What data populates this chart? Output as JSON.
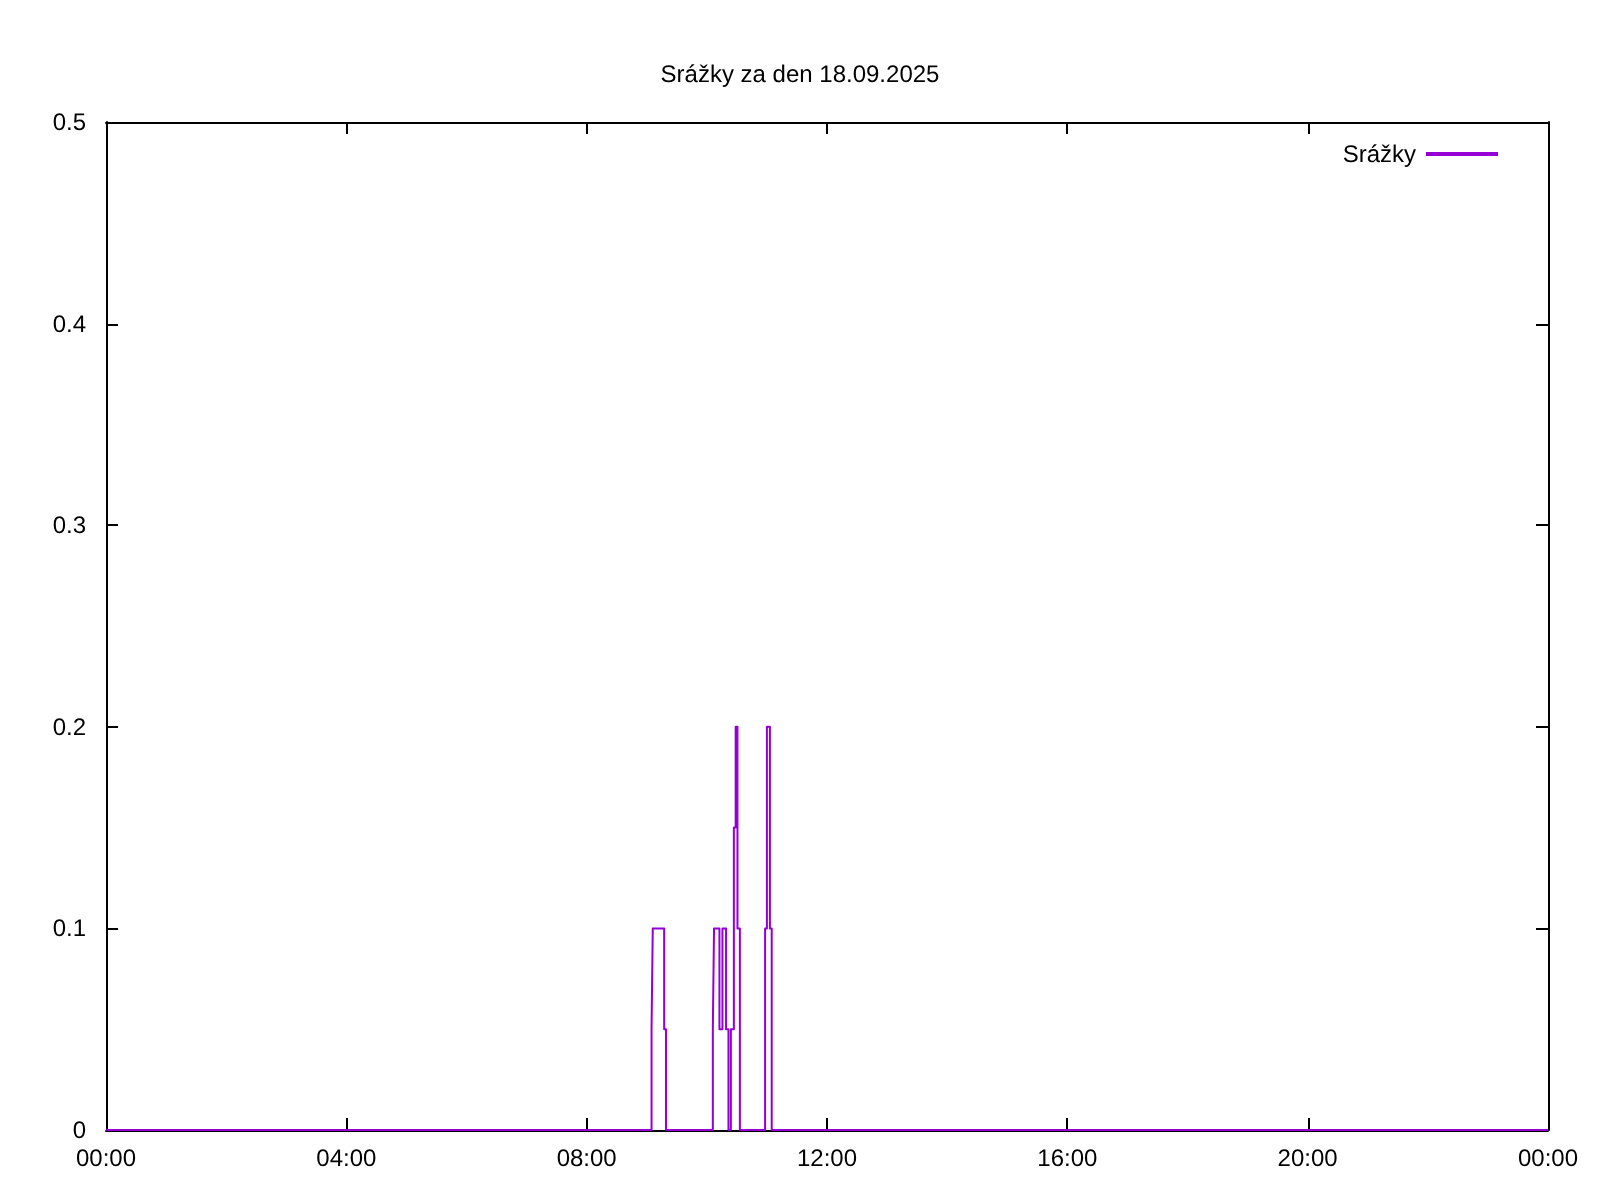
{
  "chart_data": {
    "type": "step",
    "title": "Srážky za den 18.09.2025",
    "x": [
      0,
      9.08,
      9.1,
      9.14,
      9.2,
      9.24,
      9.29,
      9.32,
      9.35,
      10.1,
      10.12,
      10.15,
      10.21,
      10.26,
      10.32,
      10.36,
      10.4,
      10.45,
      10.48,
      10.51,
      10.55,
      10.58,
      10.97,
      11.0,
      11.05,
      11.08,
      11.11,
      24
    ],
    "series": [
      {
        "name": "Srážky",
        "color": "#9400d3",
        "values": [
          0,
          0,
          0.05,
          0.1,
          0.1,
          0.1,
          0.1,
          0.05,
          0,
          0,
          0.05,
          0.1,
          0.1,
          0.05,
          0.1,
          0.05,
          0,
          0.05,
          0.15,
          0.2,
          0.1,
          0,
          0,
          0.1,
          0.2,
          0.1,
          0,
          0
        ]
      }
    ],
    "xlim": [
      0,
      24
    ],
    "xticks": [
      {
        "value": 0,
        "label": "00:00"
      },
      {
        "value": 4,
        "label": "04:00"
      },
      {
        "value": 8,
        "label": "08:00"
      },
      {
        "value": 12,
        "label": "12:00"
      },
      {
        "value": 16,
        "label": "16:00"
      },
      {
        "value": 20,
        "label": "20:00"
      },
      {
        "value": 24,
        "label": "00:00"
      }
    ],
    "ylim": [
      0,
      0.5
    ],
    "yticks": [
      0,
      0.1,
      0.2,
      0.3,
      0.4,
      0.5
    ],
    "grid": false,
    "legend": "top right",
    "line_style": "solid",
    "marker": "none"
  }
}
